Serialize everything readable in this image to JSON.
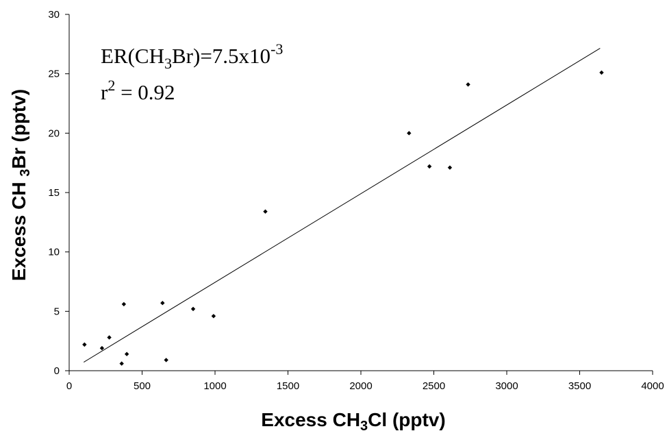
{
  "chart_data": {
    "type": "scatter",
    "title": "",
    "xlabel": {
      "main": "Excess CH",
      "sub": "3",
      "tail": "Cl (pptv)"
    },
    "ylabel": {
      "main": "Excess CH ",
      "sub": "3",
      "tail": "Br (pptv)"
    },
    "xlim": [
      0,
      4000
    ],
    "ylim": [
      0,
      30
    ],
    "xticks": [
      0,
      500,
      1000,
      1500,
      2000,
      2500,
      3000,
      3500,
      4000
    ],
    "yticks": [
      0,
      5,
      10,
      15,
      20,
      25,
      30
    ],
    "grid": false,
    "legend": "none",
    "annotations": {
      "er": {
        "pre": "ER(CH",
        "sub": "3",
        "mid": "Br)=7.5x10",
        "sup": "-3"
      },
      "r2": {
        "pre": "r",
        "sup": "2",
        "post": " = 0.92"
      }
    },
    "points": [
      {
        "x": 105,
        "y": 2.2
      },
      {
        "x": 225,
        "y": 1.9
      },
      {
        "x": 275,
        "y": 2.8
      },
      {
        "x": 360,
        "y": 0.6
      },
      {
        "x": 375,
        "y": 5.6
      },
      {
        "x": 395,
        "y": 1.4
      },
      {
        "x": 640,
        "y": 5.7
      },
      {
        "x": 665,
        "y": 0.9
      },
      {
        "x": 850,
        "y": 5.2
      },
      {
        "x": 990,
        "y": 4.6
      },
      {
        "x": 1345,
        "y": 13.4
      },
      {
        "x": 2330,
        "y": 20.0
      },
      {
        "x": 2470,
        "y": 17.2
      },
      {
        "x": 2610,
        "y": 17.1
      },
      {
        "x": 2735,
        "y": 24.1
      },
      {
        "x": 3650,
        "y": 25.1
      }
    ],
    "fit_line": {
      "x": [
        100,
        3640
      ],
      "y": [
        0.72,
        27.15
      ]
    },
    "colors": {
      "marker": "#000000",
      "line": "#000000",
      "axis": "#000000"
    }
  }
}
